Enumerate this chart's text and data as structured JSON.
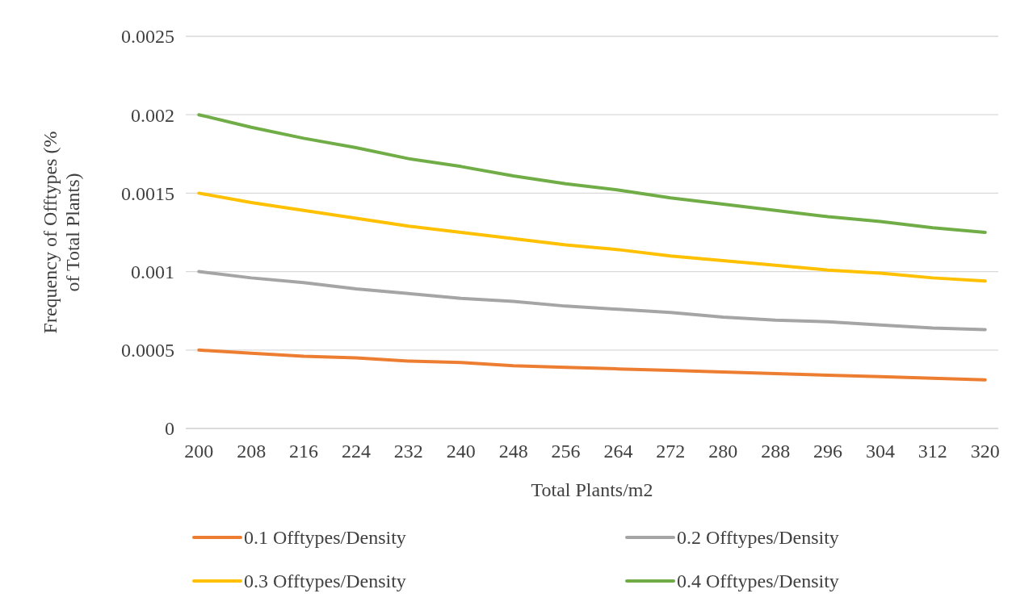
{
  "chart_data": {
    "type": "line",
    "xlabel": "Total Plants/m2",
    "ylabel": "Frequency of Offtypes (% of Total Plants)",
    "categories": [
      "200",
      "208",
      "216",
      "224",
      "232",
      "240",
      "248",
      "256",
      "264",
      "272",
      "280",
      "288",
      "296",
      "304",
      "312",
      "320"
    ],
    "series": [
      {
        "name": "0.1 Offtypes/Density",
        "color": "#ed7d31",
        "values": [
          0.0005,
          0.00048,
          0.00046,
          0.00045,
          0.00043,
          0.00042,
          0.0004,
          0.00039,
          0.00038,
          0.00037,
          0.00036,
          0.00035,
          0.00034,
          0.00033,
          0.00032,
          0.00031
        ]
      },
      {
        "name": "0.2 Offtypes/Density",
        "color": "#a5a5a5",
        "values": [
          0.001,
          0.00096,
          0.00093,
          0.00089,
          0.00086,
          0.00083,
          0.00081,
          0.00078,
          0.00076,
          0.00074,
          0.00071,
          0.00069,
          0.00068,
          0.00066,
          0.00064,
          0.00063
        ]
      },
      {
        "name": "0.3 Offtypes/Density",
        "color": "#ffc000",
        "values": [
          0.0015,
          0.00144,
          0.00139,
          0.00134,
          0.00129,
          0.00125,
          0.00121,
          0.00117,
          0.00114,
          0.0011,
          0.00107,
          0.00104,
          0.00101,
          0.00099,
          0.00096,
          0.00094
        ]
      },
      {
        "name": "0.4 Offtypes/Density",
        "color": "#70ad47",
        "values": [
          0.002,
          0.00192,
          0.00185,
          0.00179,
          0.00172,
          0.00167,
          0.00161,
          0.00156,
          0.00152,
          0.00147,
          0.00143,
          0.00139,
          0.00135,
          0.00132,
          0.00128,
          0.00125
        ]
      }
    ],
    "ylim": [
      0,
      0.0025
    ],
    "yticks": [
      0,
      0.0005,
      0.001,
      0.0015,
      0.002,
      0.0025
    ],
    "grid": "y",
    "legend": "bottom",
    "marker": "none",
    "line_style": "solid"
  }
}
